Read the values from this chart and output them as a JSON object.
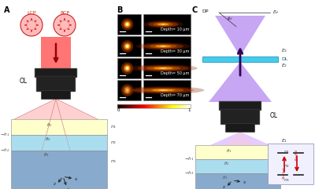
{
  "bg_color": "#ffffff",
  "panel_labels": [
    "A",
    "B",
    "C"
  ],
  "lcp_label": "LCP",
  "rcp_label": "RCP",
  "ol_label_A": "OL",
  "ol_label_C": "OL",
  "depth_labels": [
    "Depth= 10 μm",
    "Depth= 30 μm",
    "Depth= 50 μm",
    "Depth= 70 μm"
  ],
  "DL_label": "DL",
  "DP_label": "DP",
  "P_label": "P",
  "red_beam": "#ff5555",
  "purple_beam": "#9955cc",
  "cyan_dl": "#44bbdd",
  "yellow_layer": "#ffffcc",
  "cyan_layer": "#aaddee",
  "blue_layer": "#88aacc",
  "ol_color": "#111111",
  "ol_edge": "#444444"
}
